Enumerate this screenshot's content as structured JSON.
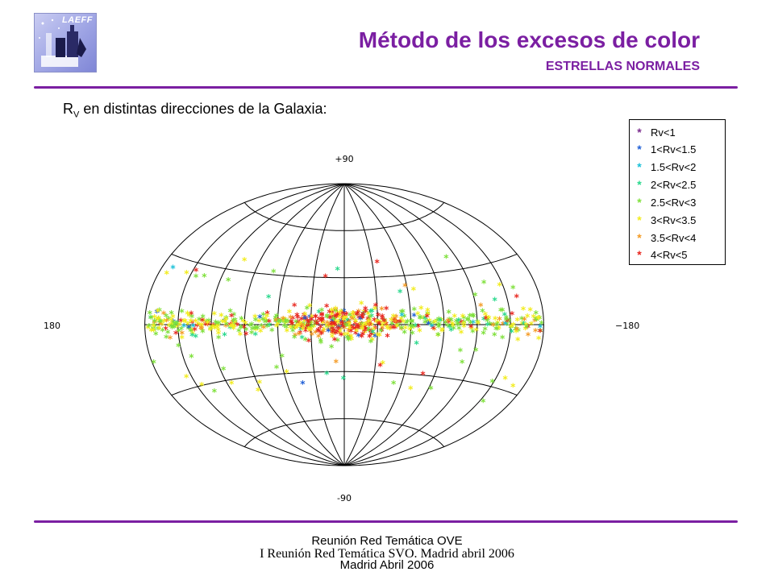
{
  "header": {
    "logo_text": "LAEFF",
    "title": "Método de los excesos de color",
    "subtitle": "ESTRELLAS NORMALES"
  },
  "caption": {
    "symbol": "R",
    "subscript": "V",
    "text": " en distintas direcciones de la Galaxia:"
  },
  "map": {
    "projection": "Aitoff",
    "labels": {
      "top": "+90",
      "bottom": "-90",
      "left": "180",
      "right": "−180"
    }
  },
  "legend": {
    "marker": "*",
    "items": [
      {
        "label": "Rv<1",
        "color": "#7b2d8e"
      },
      {
        "label": "1<Rv<1.5",
        "color": "#1f5fd6"
      },
      {
        "label": "1.5<Rv<2",
        "color": "#19c0d8"
      },
      {
        "label": "2<Rv<2.5",
        "color": "#28d88c"
      },
      {
        "label": "2.5<Rv<3",
        "color": "#7ee03a"
      },
      {
        "label": "3<Rv<3.5",
        "color": "#f2ec1c"
      },
      {
        "label": "3.5<Rv<4",
        "color": "#f49a23"
      },
      {
        "label": "4<Rv<5",
        "color": "#e8261e"
      }
    ]
  },
  "footer": {
    "line1": "Reunión Red Temática OVE",
    "line2": "I Reunión Red Temática SVO. Madrid abril 2006",
    "line3": "Madrid Abril 2006"
  }
}
